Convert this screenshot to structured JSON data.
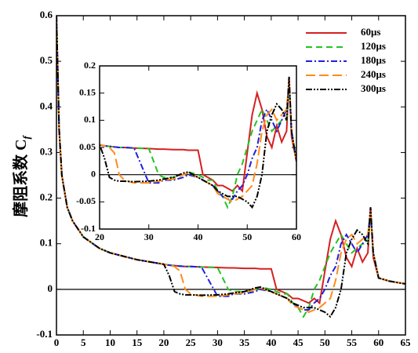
{
  "chart_data": [
    {
      "type": "line",
      "ylabel": "摩阻系数 C",
      "ylabel_sub": "f",
      "x": [
        0,
        0.5,
        1,
        2,
        3,
        5,
        8,
        10,
        15,
        20,
        21,
        22,
        23,
        24,
        25,
        27,
        30,
        32,
        33,
        35,
        37,
        38,
        40,
        41,
        42,
        43,
        44,
        45,
        46,
        47,
        48,
        49,
        50,
        51,
        52,
        53,
        54,
        55,
        56,
        57,
        58,
        58.5,
        59,
        60,
        62,
        65
      ],
      "series": [
        {
          "name": "60μs",
          "color": "#d62020",
          "dash": "solid",
          "values": [
            0.6,
            0.35,
            0.25,
            0.18,
            0.15,
            0.115,
            0.09,
            0.08,
            0.065,
            0.055,
            0.053,
            0.052,
            0.051,
            0.05,
            0.05,
            0.049,
            0.048,
            0.047,
            0.047,
            0.046,
            0.046,
            0.045,
            0.045,
            0.0,
            -0.005,
            -0.01,
            -0.02,
            -0.02,
            -0.025,
            -0.03,
            -0.02,
            -0.03,
            0.04,
            0.11,
            0.15,
            0.12,
            0.07,
            0.05,
            0.09,
            0.06,
            0.08,
            0.18,
            0.07,
            0.025,
            0.018,
            0.012
          ]
        },
        {
          "name": "120μs",
          "color": "#22c422",
          "dash": "dashed",
          "values": [
            0.6,
            0.35,
            0.25,
            0.18,
            0.15,
            0.115,
            0.09,
            0.08,
            0.065,
            0.055,
            0.053,
            0.052,
            0.051,
            0.05,
            0.05,
            0.049,
            0.048,
            0.0,
            -0.005,
            -0.005,
            0.0,
            0.005,
            0.0,
            -0.005,
            -0.01,
            -0.01,
            -0.03,
            -0.04,
            -0.06,
            -0.04,
            0.0,
            0.02,
            0.05,
            0.08,
            0.1,
            0.12,
            0.1,
            0.08,
            0.09,
            0.1,
            0.1,
            0.17,
            0.08,
            0.025,
            0.018,
            0.012
          ]
        },
        {
          "name": "180μs",
          "color": "#2020e0",
          "dash": "dashdot",
          "values": [
            0.6,
            0.35,
            0.25,
            0.18,
            0.15,
            0.115,
            0.09,
            0.08,
            0.065,
            0.055,
            0.053,
            0.052,
            0.051,
            0.05,
            0.05,
            0.049,
            -0.015,
            -0.015,
            -0.01,
            -0.01,
            -0.005,
            0.0,
            -0.005,
            -0.01,
            -0.015,
            -0.02,
            -0.03,
            -0.04,
            -0.045,
            -0.045,
            -0.03,
            -0.02,
            0.0,
            0.03,
            0.05,
            0.1,
            0.12,
            0.1,
            0.08,
            0.1,
            0.12,
            0.17,
            0.08,
            0.025,
            0.018,
            0.012
          ]
        },
        {
          "name": "240μs",
          "color": "#ff8c1a",
          "dash": "longdash",
          "values": [
            0.6,
            0.35,
            0.25,
            0.18,
            0.15,
            0.115,
            0.09,
            0.08,
            0.065,
            0.055,
            0.053,
            0.05,
            0.04,
            0.0,
            -0.01,
            -0.015,
            -0.015,
            -0.012,
            -0.01,
            -0.008,
            0.0,
            0.003,
            -0.005,
            -0.01,
            -0.015,
            -0.02,
            -0.035,
            -0.04,
            -0.045,
            -0.05,
            -0.045,
            -0.04,
            -0.03,
            -0.02,
            0.02,
            0.08,
            0.11,
            0.12,
            0.1,
            0.11,
            0.12,
            0.17,
            0.08,
            0.025,
            0.018,
            0.012
          ]
        },
        {
          "name": "300μs",
          "color": "#000000",
          "dash": "dashdotdot",
          "values": [
            0.6,
            0.35,
            0.25,
            0.18,
            0.15,
            0.115,
            0.09,
            0.08,
            0.065,
            0.055,
            0.03,
            -0.005,
            -0.01,
            -0.012,
            -0.012,
            -0.013,
            -0.012,
            -0.01,
            -0.008,
            -0.005,
            0.003,
            0.005,
            -0.005,
            -0.01,
            -0.015,
            -0.02,
            -0.03,
            -0.035,
            -0.04,
            -0.04,
            -0.04,
            -0.045,
            -0.05,
            -0.06,
            -0.04,
            0.0,
            0.08,
            0.11,
            0.13,
            0.12,
            0.1,
            0.18,
            0.08,
            0.025,
            0.018,
            0.012
          ]
        }
      ],
      "xlim": [
        0,
        65
      ],
      "xticks": [
        0,
        5,
        10,
        15,
        20,
        25,
        30,
        35,
        40,
        45,
        50,
        55,
        60,
        65
      ],
      "ylim": [
        -0.1,
        0.6
      ],
      "yticks": [
        -0.1,
        0,
        0.1,
        0.2,
        0.3,
        0.4,
        0.5,
        0.6
      ]
    },
    {
      "type": "line",
      "xlim": [
        20,
        60
      ],
      "xticks": [
        20,
        30,
        40,
        50,
        60
      ],
      "ylim": [
        -0.1,
        0.2
      ],
      "yticks": [
        -0.1,
        -0.05,
        0,
        0.05,
        0.1,
        0.15,
        0.2
      ]
    }
  ]
}
